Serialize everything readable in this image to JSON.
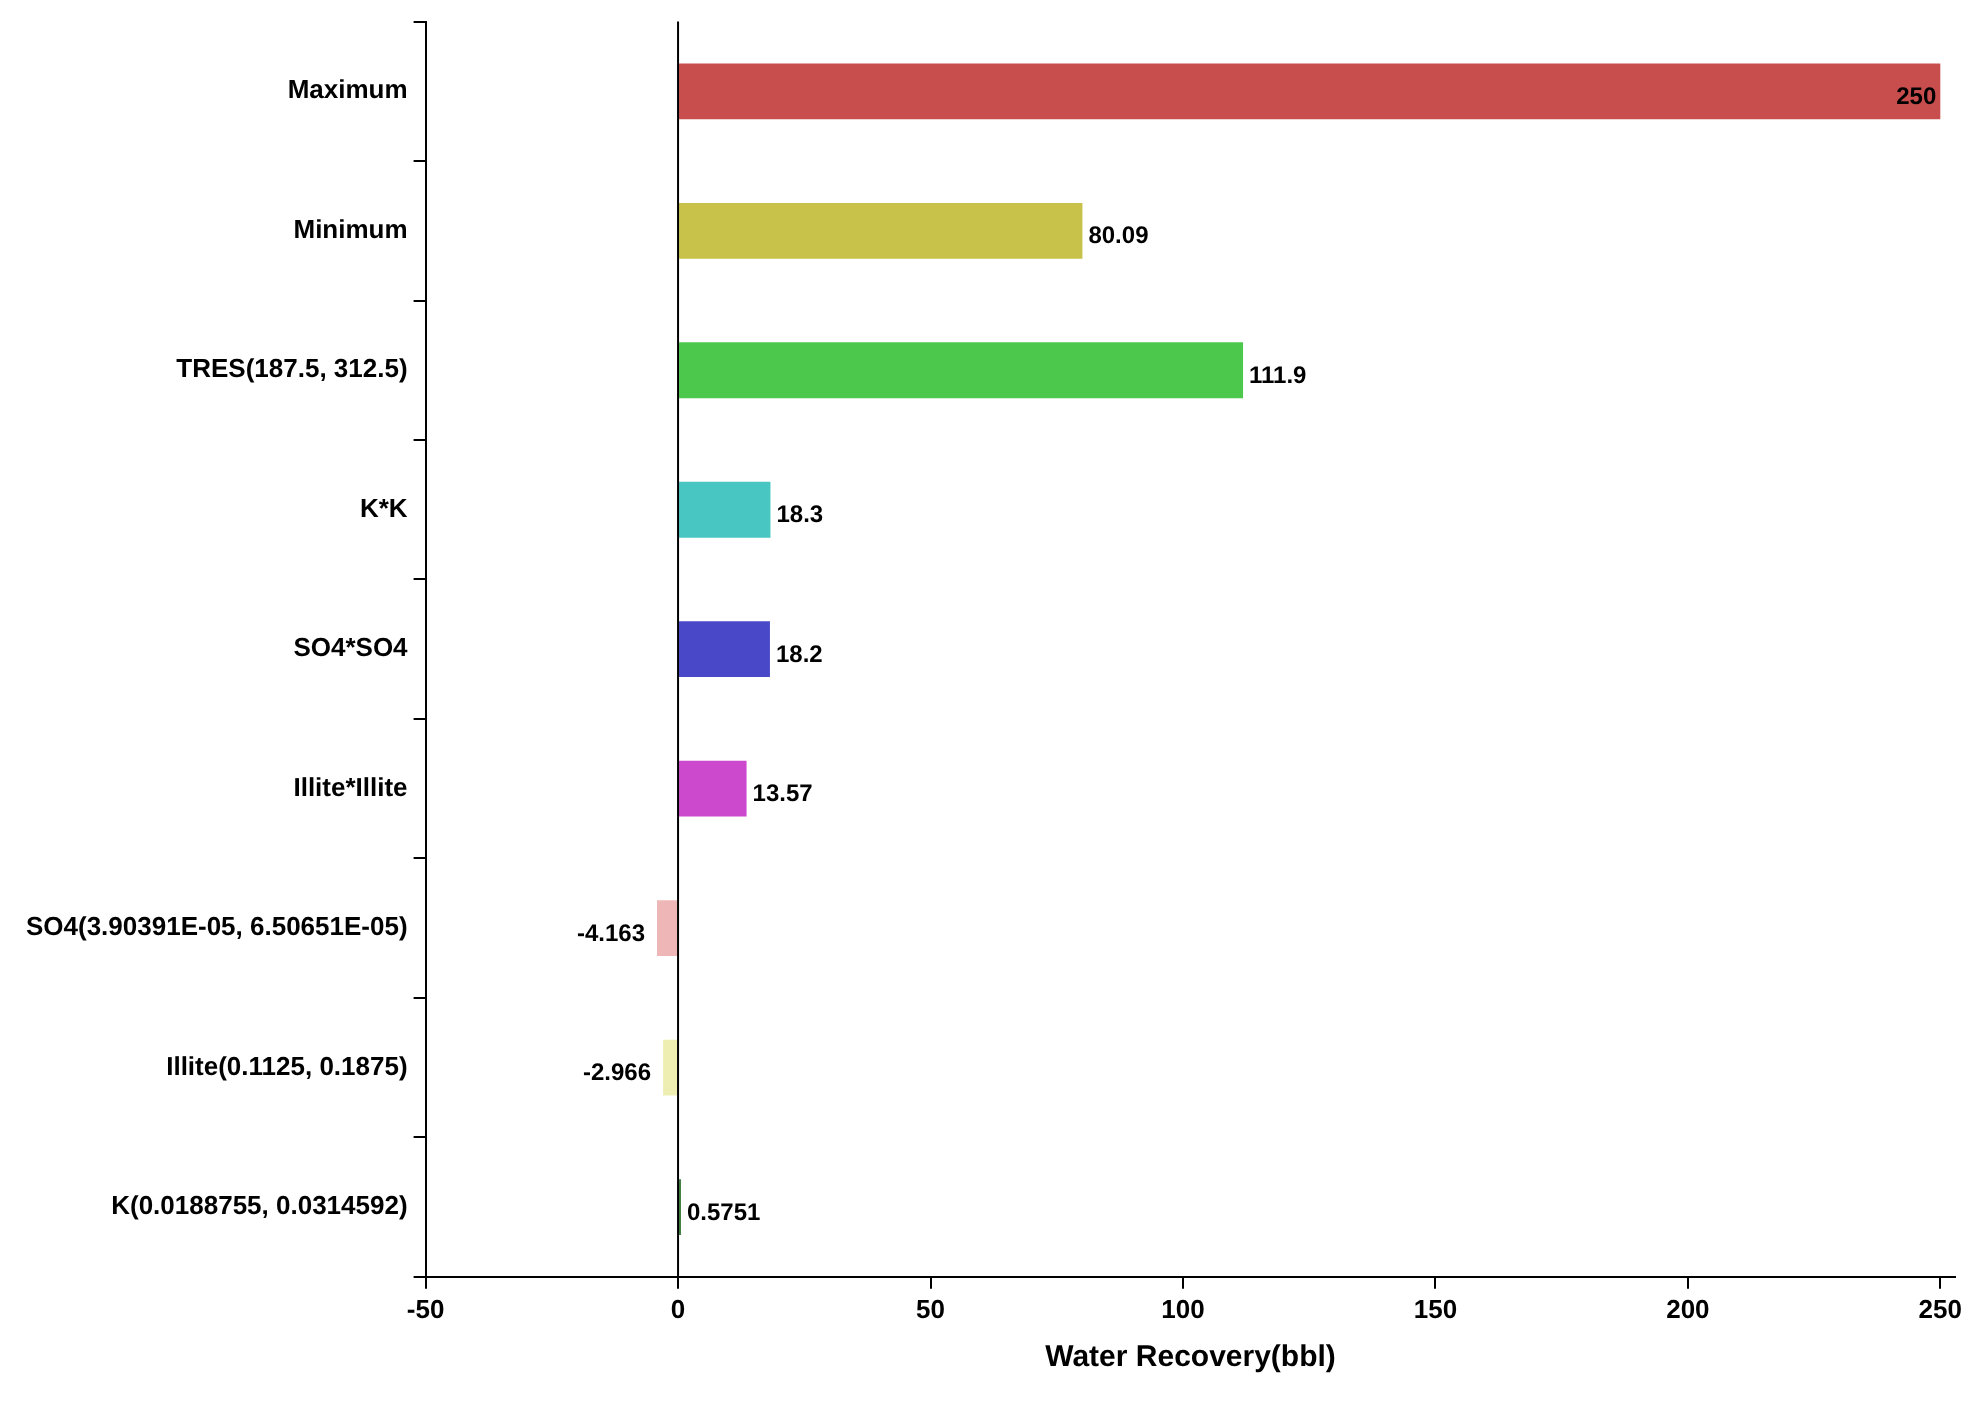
{
  "chart_data": {
    "type": "bar",
    "orientation": "horizontal",
    "xlabel": "Water Recovery(bbl)",
    "categories": [
      "Maximum",
      "Minimum",
      "TRES(187.5, 312.5)",
      "K*K",
      "SO4*SO4",
      "Illite*Illite",
      "SO4(3.90391E-05, 6.50651E-05)",
      "Illite(0.1125, 0.1875)",
      "K(0.0188755, 0.0314592)"
    ],
    "values": [
      250,
      80.09,
      111.9,
      18.3,
      18.2,
      13.57,
      -4.163,
      -2.966,
      0.5751
    ],
    "colors": [
      "#c84d4d",
      "#c8c24a",
      "#4cc84c",
      "#48c6c2",
      "#4848c8",
      "#cc48cc",
      "#eeb6b6",
      "#eeeeb2",
      "#3c7a3c"
    ],
    "xlim": [
      -50,
      253
    ],
    "xticks": [
      -50,
      0,
      50,
      100,
      150,
      200,
      250
    ],
    "ref_lines": [
      {
        "axis": "x",
        "value": 0,
        "color": "#000000"
      }
    ],
    "data_labels": true,
    "grid": false,
    "legend": false
  }
}
